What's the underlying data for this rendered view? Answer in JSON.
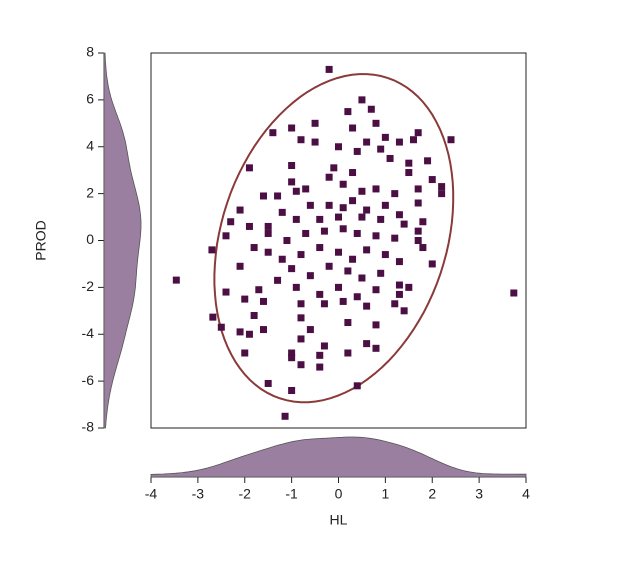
{
  "chart_data": {
    "type": "scatter",
    "xlabel": "HL",
    "ylabel": "PROD",
    "xlim": [
      -4,
      4
    ],
    "xticks": [
      -4,
      -3,
      -2,
      -1,
      0,
      1,
      2,
      3,
      4
    ],
    "ylim": [
      -8,
      8
    ],
    "yticks": [
      -8,
      -6,
      -4,
      -2,
      0,
      2,
      4,
      6,
      8
    ],
    "color": "#4b0f43",
    "ellipse_color": "#8b3a3a",
    "density_color": "#9b7fa0",
    "ellipse": {
      "center": [
        -0.1,
        0.1
      ],
      "axis1": [
        0.7,
        7.0
      ],
      "axis2": [
        2.45,
        -0.2
      ]
    },
    "x": [
      -0.2,
      0.5,
      0.2,
      0.7,
      0.8,
      -0.5,
      -1.0,
      -1.4,
      -0.8,
      0.3,
      0.6,
      1.0,
      1.3,
      1.6,
      1.7,
      2.4,
      0.0,
      0.4,
      -0.5,
      -1.0,
      0.9,
      1.1,
      1.5,
      1.9,
      1.5,
      -1.9,
      -1.0,
      -0.2,
      0.3,
      -0.1,
      0.1,
      0.5,
      0.8,
      1.2,
      1.7,
      2.0,
      2.2,
      2.2,
      1.7,
      -0.7,
      -0.9,
      -1.3,
      -1.6,
      -2.1,
      -2.3,
      -1.9,
      -1.2,
      -0.6,
      -0.2,
      0.1,
      0.3,
      0.6,
      1.0,
      1.3,
      0.9,
      0.5,
      0.0,
      -0.4,
      -0.9,
      -1.5,
      1.4,
      1.7,
      1.8,
      -2.4,
      -2.7,
      -1.5,
      -1.1,
      -0.7,
      -0.3,
      0.1,
      0.4,
      0.8,
      1.2,
      1.7,
      1.8,
      -2.1,
      -1.8,
      -1.5,
      -1.2,
      -0.8,
      -0.4,
      0.0,
      0.3,
      0.6,
      1.0,
      1.3,
      2.0,
      -1.0,
      -0.6,
      -0.2,
      0.2,
      0.5,
      0.9,
      1.3,
      -1.3,
      -1.7,
      -2.0,
      -0.9,
      -0.4,
      0.0,
      0.4,
      0.8,
      1.2,
      1.3,
      1.5,
      -2.4,
      -1.6,
      -0.8,
      -0.3,
      0.1,
      0.6,
      1.4,
      -2.5,
      -1.8,
      -0.8,
      -0.6,
      0.2,
      0.8,
      -2.1,
      -1.9,
      -1.6,
      -0.8,
      -0.3,
      0.6,
      0.8,
      -2.0,
      -1.0,
      -0.4,
      0.2,
      -1.0,
      -0.8,
      -0.4,
      0.4,
      -1.5,
      -1.0,
      -3.46,
      3.74,
      -1.14,
      -2.68
    ],
    "y": [
      7.3,
      6.0,
      5.5,
      5.6,
      5.0,
      5.0,
      4.8,
      4.6,
      4.3,
      4.8,
      4.2,
      4.4,
      4.2,
      4.3,
      4.6,
      4.3,
      4.0,
      3.8,
      4.2,
      3.2,
      3.9,
      3.5,
      3.3,
      3.4,
      2.9,
      3.1,
      2.5,
      2.7,
      2.9,
      3.1,
      2.4,
      2.1,
      2.2,
      2.0,
      2.2,
      2.6,
      2.3,
      2.0,
      1.6,
      2.2,
      2.1,
      1.9,
      1.9,
      1.3,
      0.8,
      0.6,
      1.2,
      1.5,
      1.5,
      1.4,
      1.7,
      1.3,
      1.5,
      1.1,
      0.9,
      1.0,
      1.0,
      0.9,
      0.9,
      0.6,
      0.7,
      0.4,
      0.8,
      0.2,
      -0.4,
      0.3,
      0.0,
      0.3,
      0.4,
      0.5,
      0.3,
      0.2,
      0.1,
      0.0,
      -0.3,
      -1.1,
      -0.3,
      -0.5,
      -0.8,
      -0.6,
      -0.3,
      -0.5,
      -0.8,
      -0.4,
      -0.6,
      -0.9,
      -1.0,
      -1.2,
      -1.5,
      -1.1,
      -1.3,
      -1.6,
      -1.4,
      -1.9,
      -1.7,
      -2.1,
      -2.5,
      -2.0,
      -2.3,
      -2.0,
      -2.4,
      -2.1,
      -2.7,
      -2.3,
      -2.0,
      -2.2,
      -2.6,
      -2.7,
      -2.7,
      -2.6,
      -2.8,
      -3.0,
      -3.7,
      -3.2,
      -3.3,
      -3.8,
      -3.5,
      -3.6,
      -3.9,
      -4.0,
      -3.8,
      -4.2,
      -4.5,
      -4.4,
      -4.6,
      -4.8,
      -4.8,
      -4.9,
      -4.8,
      -5.0,
      -5.3,
      -5.4,
      -6.2,
      -6.1,
      -6.4,
      -1.69,
      -2.24,
      -7.5,
      -3.27
    ]
  }
}
